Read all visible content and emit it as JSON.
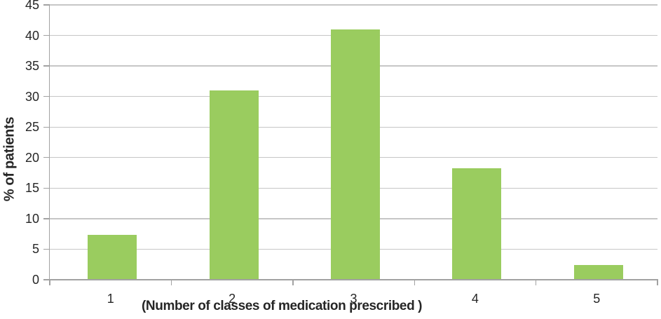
{
  "chart_data": {
    "type": "bar",
    "title": "",
    "categories": [
      "1",
      "2",
      "3",
      "4",
      "5"
    ],
    "values": [
      7.4,
      31,
      41,
      18.2,
      2.4
    ],
    "xlabel": "(Number of classes of medication prescribed )",
    "ylabel": "% of patients",
    "ylim": [
      0,
      45
    ],
    "yticks": [
      0,
      5,
      10,
      15,
      20,
      25,
      30,
      35,
      40,
      45
    ],
    "grid": true,
    "legend": "none",
    "colors": {
      "bar": "#9ACC5F",
      "gridline": "#C6C6C6",
      "axis": "#A2A2A2",
      "text": "#262626"
    }
  }
}
